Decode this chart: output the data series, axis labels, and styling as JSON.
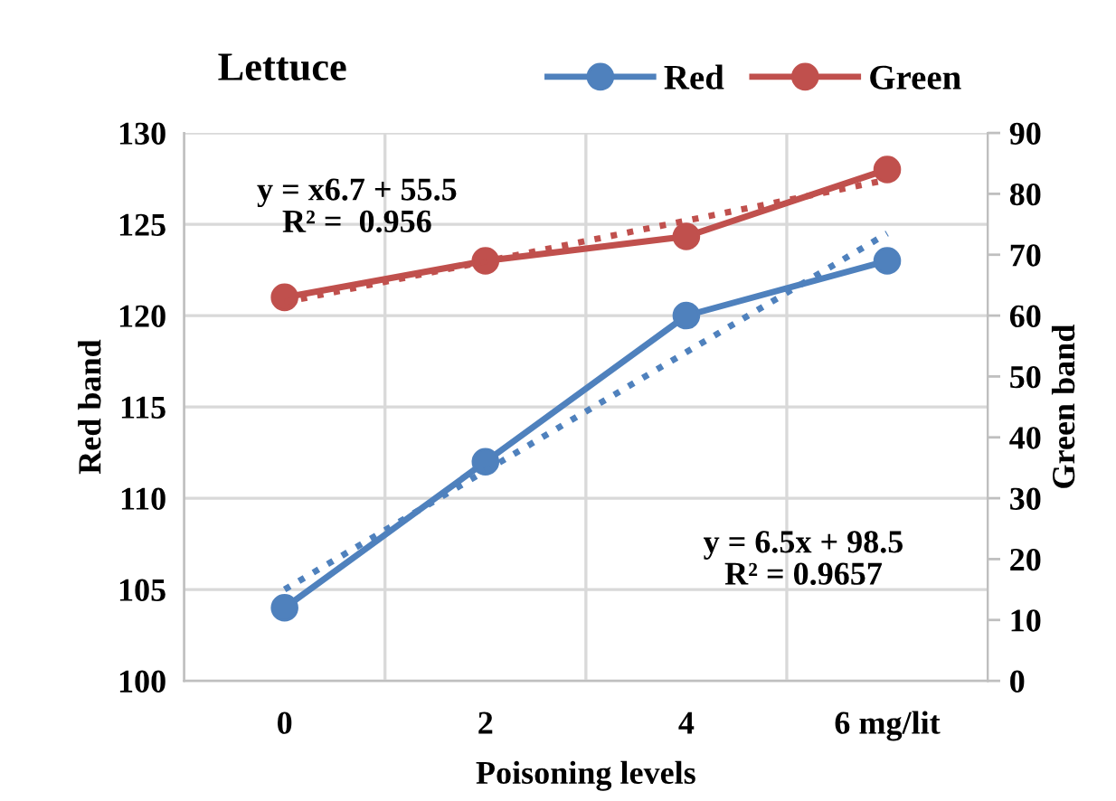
{
  "chart_data": {
    "type": "line",
    "title": "Lettuce",
    "xlabel": "Poisoning levels",
    "ylabel": "Red band",
    "y2label": "Green band",
    "categories": [
      "0",
      "2",
      "4",
      "6 mg/lit"
    ],
    "series": [
      {
        "name": "Red",
        "color": "#4f81bd",
        "values": [
          104,
          112,
          120,
          123
        ],
        "marker": "circle"
      },
      {
        "name": "Green",
        "color": "#c0504d",
        "values": [
          63,
          69,
          73,
          84
        ],
        "axis": "y2",
        "marker": "circle"
      },
      {
        "type": "line",
        "color": "#4f81bd",
        "values": [
          105,
          111.5,
          118,
          124.5
        ],
        "line_style": "dotted",
        "marker": "none"
      },
      {
        "type": "line",
        "color": "#c0504d",
        "values": [
          62.2,
          68.9,
          75.6,
          82.3
        ],
        "axis": "y2",
        "line_style": "dotted",
        "marker": "none"
      }
    ],
    "ylim": [
      100,
      130
    ],
    "yticks": [
      100,
      105,
      110,
      115,
      120,
      125,
      130
    ],
    "y2lim": [
      0,
      90
    ],
    "y2ticks": [
      0,
      10,
      20,
      30,
      40,
      50,
      60,
      70,
      80,
      90
    ],
    "annotations": [
      "y = x6.7 + 55.5\nR² =  0.956",
      "y = 6.5x + 98.5\nR² = 0.9657"
    ],
    "grid": true,
    "legend": "top right",
    "line_style": "solid"
  }
}
